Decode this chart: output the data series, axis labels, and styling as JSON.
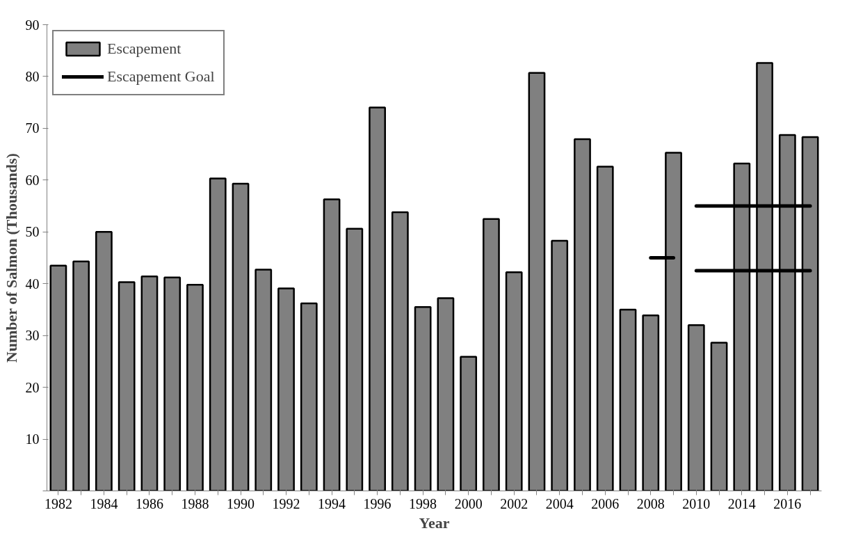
{
  "chart_data": {
    "type": "bar",
    "xlabel": "Year",
    "ylabel": "Number of Salmon (Thousands)",
    "categories": [
      "1982",
      null,
      "1984",
      null,
      "1986",
      null,
      "1988",
      null,
      "1990",
      null,
      "1992",
      null,
      "1994",
      null,
      "1996",
      null,
      "1998",
      null,
      "2000",
      null,
      "2002",
      null,
      "2004",
      null,
      "2006",
      null,
      "2008",
      null,
      "2010",
      null,
      "2014",
      null,
      "2016",
      null
    ],
    "series": [
      {
        "name": "Escapement",
        "color": "#808080",
        "values": [
          43.5,
          44.3,
          50.0,
          40.3,
          41.4,
          41.2,
          39.8,
          60.3,
          59.3,
          42.7,
          39.1,
          36.2,
          56.3,
          50.6,
          74.0,
          53.8,
          35.5,
          37.2,
          25.9,
          52.5,
          42.2,
          80.7,
          48.3,
          67.9,
          62.6,
          35.0,
          33.9,
          65.3,
          32.0,
          28.6,
          63.2,
          82.6,
          68.7,
          68.3
        ]
      },
      {
        "name": "Escapement Goal",
        "type": "line",
        "color": "#000000",
        "values": [
          null,
          null,
          null,
          null,
          null,
          null,
          null,
          null,
          null,
          null,
          null,
          null,
          null,
          null,
          null,
          null,
          null,
          null,
          null,
          null,
          null,
          null,
          null,
          null,
          null,
          null,
          45,
          45,
          null,
          null,
          null,
          null,
          null,
          null
        ]
      },
      {
        "type": "line",
        "color": "#000000",
        "values": [
          null,
          null,
          null,
          null,
          null,
          null,
          null,
          null,
          null,
          null,
          null,
          null,
          null,
          null,
          null,
          null,
          null,
          null,
          null,
          null,
          null,
          null,
          null,
          null,
          null,
          null,
          null,
          null,
          55,
          55,
          55,
          55,
          55,
          55
        ]
      },
      {
        "type": "line",
        "color": "#000000",
        "values": [
          null,
          null,
          null,
          null,
          null,
          null,
          null,
          null,
          null,
          null,
          null,
          null,
          null,
          null,
          null,
          null,
          null,
          null,
          null,
          null,
          null,
          null,
          null,
          null,
          null,
          null,
          null,
          null,
          42.5,
          42.5,
          42.5,
          42.5,
          42.5,
          42.5
        ]
      }
    ],
    "ylim": [
      0,
      90
    ],
    "yticks": [
      {
        "value": 0,
        "label": null
      },
      10,
      20,
      30,
      40,
      50,
      60,
      70,
      80,
      90
    ],
    "grid": false,
    "legend": "top left"
  }
}
